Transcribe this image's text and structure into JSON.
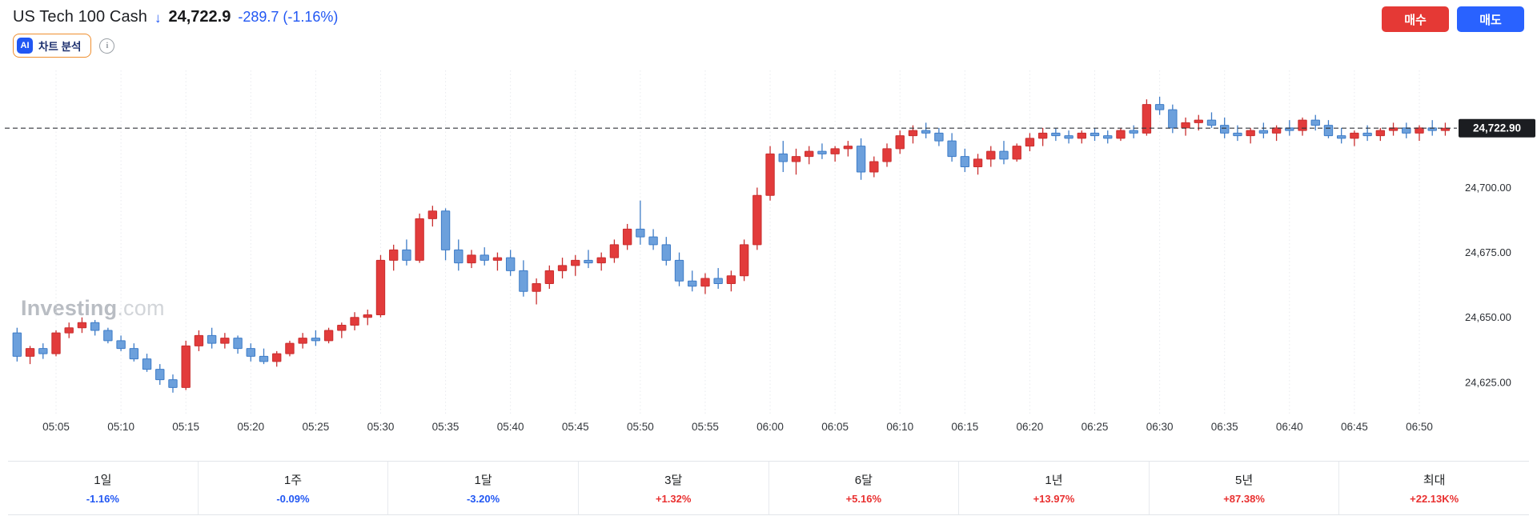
{
  "header": {
    "title": "US Tech 100 Cash",
    "price": "24,722.9",
    "change": "-289.7 (-1.16%)",
    "buy_label": "매수",
    "sell_label": "매도"
  },
  "ai_tool": {
    "badge": "AI",
    "label": "차트 분석"
  },
  "watermark": {
    "bold": "Investing",
    "light": ".com"
  },
  "colors": {
    "up": "#e23b3b",
    "up_stroke": "#c92f2f",
    "down": "#6ca0dc",
    "down_stroke": "#3e7cc7",
    "change_down": "#2157f3",
    "value_up": "#e93030",
    "buy_bg": "#e53935",
    "sell_bg": "#2962ff",
    "price_tag_bg": "#1b1d21"
  },
  "chart_data": {
    "type": "candlestick",
    "title": "US Tech 100 Cash",
    "interval": "1m",
    "start_time": "05:02",
    "last_price": 24722.9,
    "price_label": "24,722.90",
    "ylim": [
      24612,
      24743
    ],
    "y_ticks": [
      24625,
      24650,
      24675,
      24700
    ],
    "y_tick_labels": [
      "24,625.00",
      "24,650.00",
      "24,675.00",
      "24,700.00"
    ],
    "x_tick_labels": [
      "05:05",
      "05:10",
      "05:15",
      "05:20",
      "05:25",
      "05:30",
      "05:35",
      "05:40",
      "05:45",
      "05:50",
      "05:55",
      "06:00",
      "06:05",
      "06:10",
      "06:15",
      "06:20",
      "06:25",
      "06:30",
      "06:35",
      "06:40",
      "06:45",
      "06:50"
    ],
    "grid": "vertical-dotted",
    "candles_ohlc": [
      [
        24644,
        24646,
        24633,
        24635
      ],
      [
        24635,
        24639,
        24632,
        24638
      ],
      [
        24638,
        24640,
        24634,
        24636
      ],
      [
        24636,
        24645,
        24635,
        24644
      ],
      [
        24644,
        24648,
        24642,
        24646
      ],
      [
        24646,
        24650,
        24644,
        24648
      ],
      [
        24648,
        24649,
        24643,
        24645
      ],
      [
        24645,
        24646,
        24640,
        24641
      ],
      [
        24641,
        24643,
        24637,
        24638
      ],
      [
        24638,
        24640,
        24633,
        24634
      ],
      [
        24634,
        24636,
        24629,
        24630
      ],
      [
        24630,
        24632,
        24624,
        24626
      ],
      [
        24626,
        24628,
        24621,
        24623
      ],
      [
        24623,
        24641,
        24622,
        24639
      ],
      [
        24639,
        24645,
        24637,
        24643
      ],
      [
        24643,
        24646,
        24638,
        24640
      ],
      [
        24640,
        24644,
        24638,
        24642
      ],
      [
        24642,
        24643,
        24636,
        24638
      ],
      [
        24638,
        24640,
        24633,
        24635
      ],
      [
        24635,
        24638,
        24632,
        24633
      ],
      [
        24633,
        24637,
        24631,
        24636
      ],
      [
        24636,
        24641,
        24635,
        24640
      ],
      [
        24640,
        24644,
        24638,
        24642
      ],
      [
        24642,
        24645,
        24639,
        24641
      ],
      [
        24641,
        24646,
        24640,
        24645
      ],
      [
        24645,
        24648,
        24642,
        24647
      ],
      [
        24647,
        24652,
        24645,
        24650
      ],
      [
        24650,
        24653,
        24647,
        24651
      ],
      [
        24651,
        24674,
        24650,
        24672
      ],
      [
        24672,
        24678,
        24668,
        24676
      ],
      [
        24676,
        24680,
        24670,
        24672
      ],
      [
        24672,
        24690,
        24671,
        24688
      ],
      [
        24688,
        24693,
        24685,
        24691
      ],
      [
        24691,
        24692,
        24672,
        24676
      ],
      [
        24676,
        24680,
        24668,
        24671
      ],
      [
        24671,
        24676,
        24669,
        24674
      ],
      [
        24674,
        24677,
        24670,
        24672
      ],
      [
        24672,
        24675,
        24668,
        24673
      ],
      [
        24673,
        24676,
        24666,
        24668
      ],
      [
        24668,
        24672,
        24658,
        24660
      ],
      [
        24660,
        24665,
        24655,
        24663
      ],
      [
        24663,
        24670,
        24661,
        24668
      ],
      [
        24668,
        24673,
        24665,
        24670
      ],
      [
        24670,
        24674,
        24666,
        24672
      ],
      [
        24672,
        24676,
        24669,
        24671
      ],
      [
        24671,
        24675,
        24668,
        24673
      ],
      [
        24673,
        24680,
        24671,
        24678
      ],
      [
        24678,
        24686,
        24676,
        24684
      ],
      [
        24684,
        24695,
        24678,
        24681
      ],
      [
        24681,
        24684,
        24676,
        24678
      ],
      [
        24678,
        24681,
        24670,
        24672
      ],
      [
        24672,
        24675,
        24662,
        24664
      ],
      [
        24664,
        24668,
        24660,
        24662
      ],
      [
        24662,
        24667,
        24659,
        24665
      ],
      [
        24665,
        24669,
        24661,
        24663
      ],
      [
        24663,
        24668,
        24660,
        24666
      ],
      [
        24666,
        24680,
        24664,
        24678
      ],
      [
        24678,
        24700,
        24676,
        24697
      ],
      [
        24697,
        24716,
        24695,
        24713
      ],
      [
        24713,
        24718,
        24706,
        24710
      ],
      [
        24710,
        24715,
        24705,
        24712
      ],
      [
        24712,
        24716,
        24709,
        24714
      ],
      [
        24714,
        24717,
        24711,
        24713
      ],
      [
        24713,
        24716,
        24710,
        24715
      ],
      [
        24715,
        24718,
        24712,
        24716
      ],
      [
        24716,
        24719,
        24703,
        24706
      ],
      [
        24706,
        24712,
        24704,
        24710
      ],
      [
        24710,
        24717,
        24708,
        24715
      ],
      [
        24715,
        24722,
        24713,
        24720
      ],
      [
        24720,
        24724,
        24717,
        24722
      ],
      [
        24722,
        24725,
        24719,
        24721
      ],
      [
        24721,
        24723,
        24716,
        24718
      ],
      [
        24718,
        24721,
        24710,
        24712
      ],
      [
        24712,
        24715,
        24706,
        24708
      ],
      [
        24708,
        24713,
        24705,
        24711
      ],
      [
        24711,
        24716,
        24708,
        24714
      ],
      [
        24714,
        24718,
        24709,
        24711
      ],
      [
        24711,
        24717,
        24710,
        24716
      ],
      [
        24716,
        24721,
        24714,
        24719
      ],
      [
        24719,
        24723,
        24716,
        24721
      ],
      [
        24721,
        24723,
        24718,
        24720
      ],
      [
        24720,
        24722,
        24717,
        24719
      ],
      [
        24719,
        24722,
        24717,
        24721
      ],
      [
        24721,
        24723,
        24718,
        24720
      ],
      [
        24720,
        24722,
        24717,
        24719
      ],
      [
        24719,
        24723,
        24718,
        24722
      ],
      [
        24722,
        24724,
        24719,
        24721
      ],
      [
        24721,
        24734,
        24720,
        24732
      ],
      [
        24732,
        24735,
        24728,
        24730
      ],
      [
        24730,
        24732,
        24721,
        24723
      ],
      [
        24723,
        24727,
        24720,
        24725
      ],
      [
        24725,
        24728,
        24722,
        24726
      ],
      [
        24726,
        24729,
        24723,
        24724
      ],
      [
        24724,
        24727,
        24719,
        24721
      ],
      [
        24721,
        24724,
        24718,
        24720
      ],
      [
        24720,
        24723,
        24717,
        24722
      ],
      [
        24722,
        24725,
        24719,
        24721
      ],
      [
        24721,
        24724,
        24718,
        24723
      ],
      [
        24723,
        24726,
        24720,
        24722
      ],
      [
        24722,
        24727,
        24720,
        24726
      ],
      [
        24726,
        24728,
        24722,
        24724
      ],
      [
        24724,
        24726,
        24719,
        24720
      ],
      [
        24720,
        24723,
        24717,
        24719
      ],
      [
        24719,
        24722,
        24716,
        24721
      ],
      [
        24721,
        24724,
        24718,
        24720
      ],
      [
        24720,
        24723,
        24718,
        24722
      ],
      [
        24722,
        24725,
        24720,
        24723
      ],
      [
        24723,
        24725,
        24719,
        24721
      ],
      [
        24721,
        24724,
        24718,
        24723
      ],
      [
        24723,
        24726,
        24720,
        24722
      ],
      [
        24722,
        24725,
        24720,
        24722.9
      ]
    ]
  },
  "periods": [
    {
      "label": "1일",
      "value": "-1.16%"
    },
    {
      "label": "1주",
      "value": "-0.09%"
    },
    {
      "label": "1달",
      "value": "-3.20%"
    },
    {
      "label": "3달",
      "value": "+1.32%"
    },
    {
      "label": "6달",
      "value": "+5.16%"
    },
    {
      "label": "1년",
      "value": "+13.97%"
    },
    {
      "label": "5년",
      "value": "+87.38%"
    },
    {
      "label": "최대",
      "value": "+22.13K%"
    }
  ]
}
